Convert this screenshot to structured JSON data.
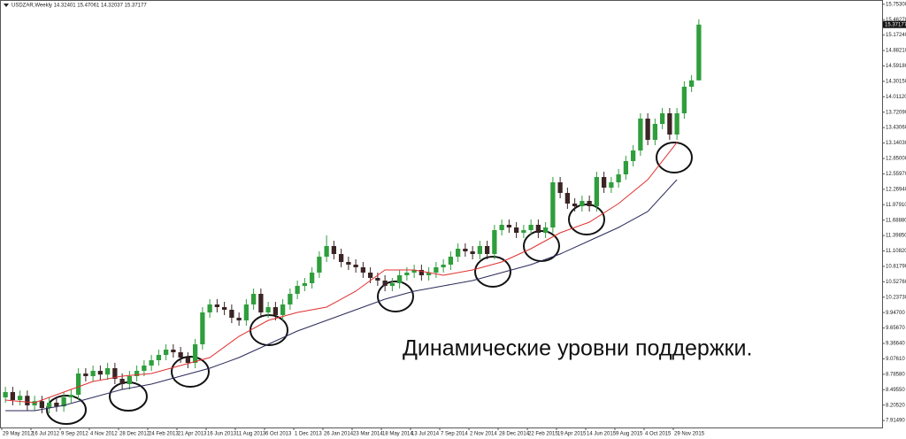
{
  "chart_data": {
    "type": "candlestick",
    "title": "USDZAR,Weekly  14.32401 15.47061 14.32037 15.37177",
    "annotation": "Динамические уровни поддержки.",
    "categories": [
      "29 May 2012",
      "16 Jul 2012",
      "9 Sep 2012",
      "4 Nov 2012",
      "28 Dec 2012",
      "24 Feb 2013",
      "21 Apr 2013",
      "16 Jun 2013",
      "11 Aug 2013",
      "6 Oct 2013",
      "1 Dec 2013",
      "26 Jan 2014",
      "23 Mar 2014",
      "18 May 2014",
      "13 Jul 2014",
      "7 Sep 2014",
      "2 Nov 2014",
      "28 Dec 2014",
      "22 Feb 2015",
      "19 Apr 2015",
      "14 Jun 2015",
      "9 Aug 2015",
      "4 Oct 2015",
      "29 Nov 2015"
    ],
    "open": [
      8.35,
      8.45,
      8.3,
      8.38,
      8.2,
      8.28,
      8.15,
      8.25,
      8.18,
      8.35,
      8.4,
      8.8,
      8.75,
      8.85,
      8.78,
      8.9,
      8.7,
      8.6,
      8.75,
      8.85,
      8.95,
      9.05,
      9.15,
      9.25,
      9.2,
      9.1,
      9.0,
      9.35,
      9.95,
      10.1,
      10.05,
      10.0,
      9.85,
      9.8,
      10.1,
      10.3,
      9.95,
      10.05,
      9.9,
      10.1,
      10.3,
      10.45,
      10.5,
      10.7,
      11.0,
      11.2,
      11.05,
      10.9,
      10.85,
      10.8,
      10.7,
      10.6,
      10.55,
      10.45,
      10.5,
      10.65,
      10.7,
      10.75,
      10.65,
      10.7,
      10.8,
      10.85,
      11.0,
      11.15,
      11.1,
      11.05,
      11.2,
      11.05,
      11.5,
      11.6,
      11.55,
      11.45,
      11.5,
      11.6,
      11.45,
      11.55,
      12.4,
      12.2,
      12.0,
      11.95,
      12.05,
      11.95,
      12.5,
      12.3,
      12.4,
      12.55,
      12.8,
      13.0,
      13.6,
      13.2,
      13.5,
      13.7,
      13.3,
      13.7,
      14.2,
      14.32
    ],
    "high": [
      8.55,
      8.55,
      8.48,
      8.48,
      8.38,
      8.38,
      8.35,
      8.35,
      8.45,
      8.5,
      8.9,
      8.9,
      8.95,
      8.95,
      9.0,
      9.0,
      8.8,
      8.85,
      8.95,
      9.05,
      9.15,
      9.25,
      9.35,
      9.35,
      9.3,
      9.2,
      9.45,
      10.05,
      10.2,
      10.2,
      10.15,
      10.1,
      9.95,
      10.2,
      10.4,
      10.4,
      10.15,
      10.15,
      10.2,
      10.4,
      10.55,
      10.6,
      10.8,
      11.1,
      11.4,
      11.3,
      11.15,
      11.0,
      10.95,
      10.9,
      10.8,
      10.7,
      10.65,
      10.6,
      10.75,
      10.8,
      10.85,
      10.85,
      10.8,
      10.9,
      10.95,
      11.1,
      11.25,
      11.25,
      11.2,
      11.3,
      11.3,
      11.6,
      11.7,
      11.7,
      11.65,
      11.6,
      11.7,
      11.7,
      11.65,
      12.5,
      12.5,
      12.3,
      12.1,
      12.15,
      12.15,
      12.6,
      12.6,
      12.5,
      12.65,
      12.9,
      13.1,
      13.7,
      13.7,
      13.6,
      13.8,
      13.8,
      13.8,
      14.3,
      14.42,
      15.47
    ],
    "low": [
      8.25,
      8.2,
      8.2,
      8.1,
      8.1,
      8.05,
      8.05,
      8.08,
      8.08,
      8.25,
      8.3,
      8.65,
      8.65,
      8.68,
      8.68,
      8.6,
      8.5,
      8.5,
      8.65,
      8.75,
      8.85,
      8.95,
      9.05,
      9.1,
      9.0,
      8.9,
      8.9,
      9.25,
      9.85,
      9.95,
      9.9,
      9.75,
      9.7,
      9.7,
      10.0,
      9.85,
      9.85,
      9.8,
      9.8,
      10.0,
      10.2,
      10.35,
      10.4,
      10.6,
      10.9,
      10.95,
      10.8,
      10.75,
      10.7,
      10.6,
      10.5,
      10.45,
      10.35,
      10.35,
      10.4,
      10.55,
      10.6,
      10.55,
      10.55,
      10.6,
      10.7,
      10.75,
      10.9,
      11.0,
      10.95,
      10.95,
      10.95,
      10.95,
      11.4,
      11.45,
      11.35,
      11.35,
      11.4,
      11.35,
      11.35,
      11.45,
      12.1,
      11.9,
      11.85,
      11.85,
      11.85,
      11.85,
      12.2,
      12.2,
      12.3,
      12.45,
      12.7,
      12.9,
      13.1,
      13.1,
      13.4,
      13.2,
      13.2,
      13.6,
      14.1,
      14.32
    ],
    "close": [
      8.45,
      8.3,
      8.38,
      8.2,
      8.28,
      8.15,
      8.25,
      8.18,
      8.35,
      8.4,
      8.8,
      8.75,
      8.85,
      8.78,
      8.9,
      8.7,
      8.6,
      8.75,
      8.85,
      8.95,
      9.05,
      9.15,
      9.25,
      9.2,
      9.1,
      9.0,
      9.35,
      9.95,
      10.1,
      10.05,
      10.0,
      9.85,
      9.8,
      10.1,
      10.3,
      9.95,
      10.05,
      9.9,
      10.1,
      10.3,
      10.45,
      10.5,
      10.7,
      11.0,
      11.2,
      11.05,
      10.9,
      10.85,
      10.8,
      10.7,
      10.6,
      10.55,
      10.45,
      10.5,
      10.65,
      10.7,
      10.75,
      10.65,
      10.7,
      10.8,
      10.85,
      11.0,
      11.15,
      11.1,
      11.05,
      11.2,
      11.05,
      11.5,
      11.6,
      11.55,
      11.45,
      11.5,
      11.6,
      11.45,
      11.55,
      12.4,
      12.2,
      12.0,
      11.95,
      12.05,
      11.95,
      12.5,
      12.3,
      12.4,
      12.55,
      12.8,
      13.0,
      13.6,
      13.2,
      13.5,
      13.7,
      13.3,
      13.7,
      14.2,
      14.32,
      15.37
    ],
    "up_color": "#2f9e3c",
    "down_color": "#3b2424",
    "series": [
      {
        "color": "#e03030",
        "values": [
          8.3,
          8.25,
          8.45,
          8.65,
          8.75,
          8.8,
          8.95,
          9.1,
          9.5,
          9.8,
          9.95,
          10.05,
          10.35,
          10.75,
          10.75,
          10.65,
          10.75,
          10.9,
          11.15,
          11.45,
          11.65,
          12.0,
          12.45,
          13.15
        ]
      },
      {
        "color": "#2a2a5a",
        "values": [
          8.1,
          8.1,
          8.2,
          8.35,
          8.5,
          8.6,
          8.75,
          8.9,
          9.1,
          9.35,
          9.6,
          9.8,
          10.0,
          10.2,
          10.35,
          10.45,
          10.55,
          10.7,
          10.85,
          11.05,
          11.3,
          11.55,
          11.85,
          12.45
        ]
      }
    ],
    "last_price": {
      "value": 15.37177,
      "label": "15.37177"
    },
    "ylim": [
      7.8,
      15.8
    ],
    "yticks": [
      {
        "value": 7.9149,
        "label": "7.91490"
      },
      {
        "value": 8.2052,
        "label": "8.20520"
      },
      {
        "value": 8.4955,
        "label": "8.49550"
      },
      {
        "value": 8.7858,
        "label": "8.78580"
      },
      {
        "value": 9.0761,
        "label": "9.07610"
      },
      {
        "value": 9.3664,
        "label": "9.36640"
      },
      {
        "value": 9.6567,
        "label": "9.65670"
      },
      {
        "value": 9.947,
        "label": "9.94700"
      },
      {
        "value": 10.2373,
        "label": "10.23730"
      },
      {
        "value": 10.5276,
        "label": "10.52760"
      },
      {
        "value": 10.8179,
        "label": "10.81790"
      },
      {
        "value": 11.1082,
        "label": "11.10820"
      },
      {
        "value": 11.3985,
        "label": "11.39850"
      },
      {
        "value": 11.6888,
        "label": "11.68880"
      },
      {
        "value": 11.9791,
        "label": "11.97910"
      },
      {
        "value": 12.2694,
        "label": "12.26940"
      },
      {
        "value": 12.5597,
        "label": "12.55970"
      },
      {
        "value": 12.85,
        "label": "12.85000"
      },
      {
        "value": 13.1403,
        "label": "13.14030"
      },
      {
        "value": 13.4306,
        "label": "13.43060"
      },
      {
        "value": 13.7209,
        "label": "13.72090"
      },
      {
        "value": 14.0112,
        "label": "14.01120"
      },
      {
        "value": 14.3015,
        "label": "14.30150"
      },
      {
        "value": 14.5918,
        "label": "14.59180"
      },
      {
        "value": 14.8821,
        "label": "14.88210"
      },
      {
        "value": 15.1724,
        "label": "15.17240"
      },
      {
        "value": 15.4627,
        "label": "15.46270"
      },
      {
        "value": 15.753,
        "label": "15.75300"
      }
    ]
  }
}
